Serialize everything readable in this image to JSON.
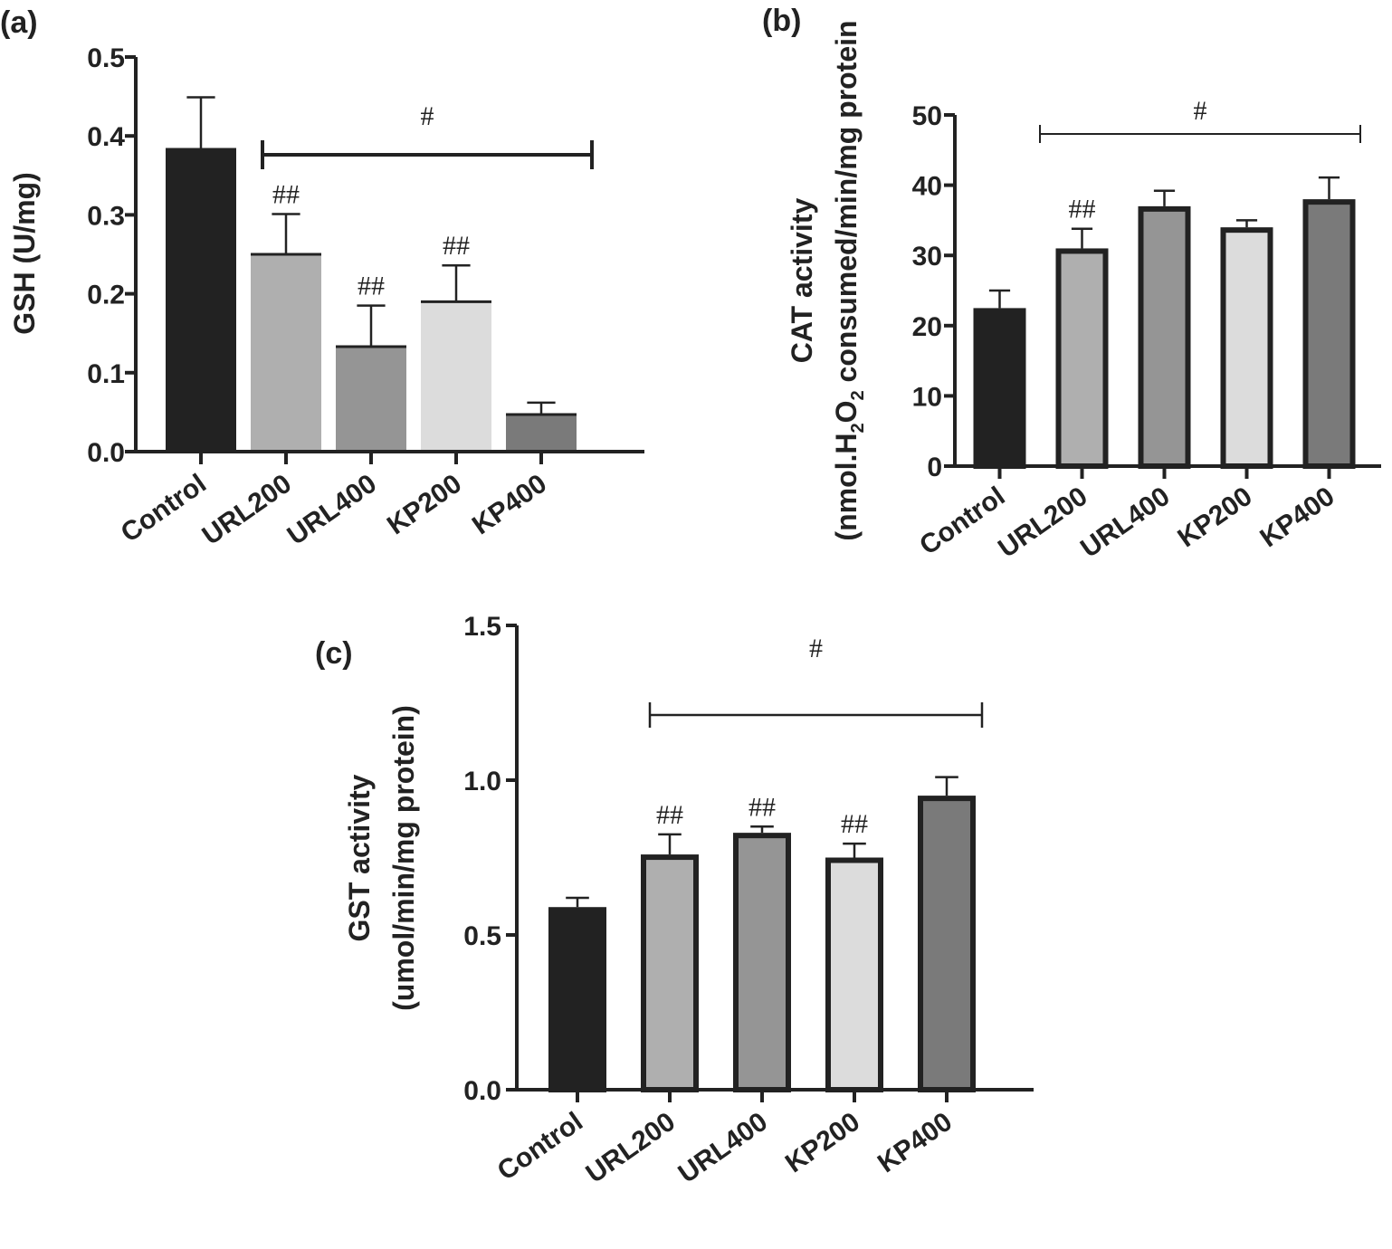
{
  "chart_data": [
    {
      "panel_label": "(a)",
      "type": "bar",
      "ylabel": "GSH (U/mg)",
      "ylim": [
        0,
        0.5
      ],
      "yticks": [
        "0.0",
        "0.1",
        "0.2",
        "0.3",
        "0.4",
        "0.5"
      ],
      "ytick_values": [
        0,
        0.1,
        0.2,
        0.3,
        0.4,
        0.5
      ],
      "categories": [
        "Control",
        "URL200",
        "URL400",
        "KP200",
        "KP400"
      ],
      "values": [
        0.383,
        0.25,
        0.133,
        0.19,
        0.047
      ],
      "errors": [
        0.066,
        0.051,
        0.052,
        0.046,
        0.015
      ],
      "bar_colors": [
        "#222222",
        "#afafaf",
        "#959595",
        "#dcdcdc",
        "#7a7a7a"
      ],
      "bar_outline": false,
      "bar_annotations": [
        "",
        "##",
        "##",
        "##",
        ""
      ],
      "bracket": {
        "label": "#",
        "from": "URL200",
        "to": "KP400"
      }
    },
    {
      "panel_label": "(b)",
      "type": "bar",
      "ylabel_line1": "CAT activity",
      "ylabel_line2": "(nmol.H2O2 consumed/min/mg protein",
      "ylabel_parts": [
        "(nmol.H",
        "2",
        "O",
        "2",
        " consumed/min/mg protein"
      ],
      "ylim": [
        0,
        50
      ],
      "yticks": [
        "0",
        "10",
        "20",
        "30",
        "40",
        "50"
      ],
      "ytick_values": [
        0,
        10,
        20,
        30,
        40,
        50
      ],
      "categories": [
        "Control",
        "URL200",
        "URL400",
        "KP200",
        "KP400"
      ],
      "values": [
        22.5,
        31.0,
        37.0,
        34.0,
        38.0
      ],
      "errors": [
        2.5,
        2.8,
        2.2,
        1.0,
        3.1
      ],
      "bar_colors": [
        "#222222",
        "#afafaf",
        "#959595",
        "#dcdcdc",
        "#7a7a7a"
      ],
      "bar_outline": true,
      "bar_annotations": [
        "",
        "##",
        "",
        "",
        ""
      ],
      "bracket": {
        "label": "#",
        "from": "URL200",
        "to": "KP400"
      }
    },
    {
      "panel_label": "(c)",
      "type": "bar",
      "ylabel_line1": "GST activity",
      "ylabel_line2": "(umol/min/mg protein)",
      "ylim": [
        0,
        1.5
      ],
      "yticks": [
        "0.0",
        "0.5",
        "1.0",
        "1.5"
      ],
      "ytick_values": [
        0,
        0.5,
        1.0,
        1.5
      ],
      "categories": [
        "Control",
        "URL200",
        "URL400",
        "KP200",
        "KP400"
      ],
      "values": [
        0.59,
        0.76,
        0.83,
        0.75,
        0.95
      ],
      "errors": [
        0.03,
        0.065,
        0.02,
        0.045,
        0.06
      ],
      "bar_colors": [
        "#222222",
        "#afafaf",
        "#959595",
        "#dcdcdc",
        "#7a7a7a"
      ],
      "bar_outline": true,
      "bar_annotations": [
        "",
        "##",
        "##",
        "##",
        ""
      ],
      "bracket": {
        "label": "#",
        "from": "URL200",
        "to": "KP400"
      }
    }
  ]
}
